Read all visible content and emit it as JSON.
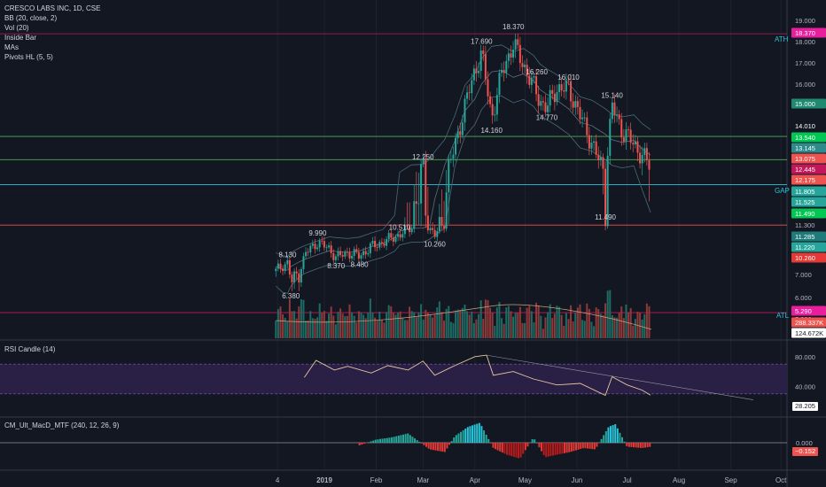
{
  "legend": {
    "title": "CRESCO LABS INC, 1D, CSE",
    "indicators": [
      "BB (20, close, 2)",
      "Vol (20)",
      "Inside Bar",
      "MAs",
      "Pivots HL (5, 5)"
    ]
  },
  "rsi_pane": {
    "title": "RSI Candle (14)",
    "value_tag": "28.205"
  },
  "macd_pane": {
    "title": "CM_Ult_MacD_MTF (240, 12, 26, 9)",
    "zero_tag": "0.000",
    "value_tag": "−0.152"
  },
  "side_labels": {
    "ath": "ATH",
    "gap": "GAP",
    "atl": "ATL"
  },
  "chart_data": {
    "type": "candlestick",
    "symbol": "CRESCO LABS INC",
    "interval": "1D",
    "exchange": "CSE",
    "price_axis_ticks": [
      "19.000",
      "18.000",
      "17.000",
      "16.000",
      "15.000",
      "14.000",
      "13.000",
      "12.000",
      "11.300",
      "7.000",
      "6.000",
      "5.000"
    ],
    "x_axis_ticks": [
      "4",
      "2019",
      "Feb",
      "Mar",
      "Apr",
      "May",
      "Jun",
      "Jul",
      "Aug",
      "Sep",
      "Oct"
    ],
    "price_tags": [
      {
        "text": "18.370",
        "price": 18.37,
        "color": "#e91e9c"
      },
      {
        "text": "15.000",
        "price": 15.0,
        "color": "#1f8a70"
      },
      {
        "text": "14.010",
        "price": 14.01,
        "color": "#131722"
      },
      {
        "text": "13.540",
        "price": 13.54,
        "color": "#00c853"
      },
      {
        "text": "13.145",
        "price": 13.145,
        "color": "#2e8b8b"
      },
      {
        "text": "13.075",
        "price": 13.075,
        "color": "#ef5350"
      },
      {
        "text": "12.445",
        "price": 12.445,
        "color": "#c2185b"
      },
      {
        "text": "12.175",
        "price": 12.175,
        "color": "#ef5350"
      },
      {
        "text": "11.805",
        "price": 11.805,
        "color": "#26a69a"
      },
      {
        "text": "11.525",
        "price": 11.525,
        "color": "#26a69a"
      },
      {
        "text": "11.490",
        "price": 11.49,
        "color": "#00c853"
      },
      {
        "text": "11.285",
        "price": 11.285,
        "color": "#1f7a7a"
      },
      {
        "text": "11.220",
        "price": 11.22,
        "color": "#26a69a"
      },
      {
        "text": "10.260",
        "price": 10.26,
        "color": "#e53935"
      },
      {
        "text": "5.290",
        "price": 5.29,
        "color": "#e91e9c"
      },
      {
        "text": "288.337K",
        "price": null,
        "color": "#ef5350"
      },
      {
        "text": "124.672K",
        "price": null,
        "color": "#ffffff"
      }
    ],
    "pivots": [
      {
        "label": "18.370",
        "date": "2019-04-24",
        "type": "high"
      },
      {
        "label": "17.690",
        "date": "2019-04-05",
        "type": "high"
      },
      {
        "label": "16.260",
        "date": "2019-05-08",
        "type": "high"
      },
      {
        "label": "16.010",
        "date": "2019-05-27",
        "type": "high"
      },
      {
        "label": "15.140",
        "date": "2019-06-22",
        "type": "high"
      },
      {
        "label": "14.770",
        "date": "2019-05-14",
        "type": "low"
      },
      {
        "label": "14.160",
        "date": "2019-04-11",
        "type": "low"
      },
      {
        "label": "12.250",
        "date": "2019-03-01",
        "type": "high"
      },
      {
        "label": "11.490",
        "date": "2019-06-18",
        "type": "low"
      },
      {
        "label": "10.510",
        "date": "2019-02-15",
        "type": "high"
      },
      {
        "label": "10.260",
        "date": "2019-03-08",
        "type": "low"
      },
      {
        "label": "9.990",
        "date": "2018-12-28",
        "type": "high"
      },
      {
        "label": "8.130",
        "date": "2018-12-10",
        "type": "high"
      },
      {
        "label": "8.370",
        "date": "2019-01-08",
        "type": "low"
      },
      {
        "label": "8.480",
        "date": "2019-01-22",
        "type": "low"
      },
      {
        "label": "6.380",
        "date": "2018-12-12",
        "type": "low"
      }
    ],
    "horizontal_levels": [
      {
        "name": "ATH",
        "price": 18.37,
        "color": "#c2185b"
      },
      {
        "name": "",
        "price": 13.54,
        "color": "#4caf50"
      },
      {
        "name": "",
        "price": 12.445,
        "color": "#4caf50"
      },
      {
        "name": "GAP",
        "price": 11.805,
        "color": "#26c6da"
      },
      {
        "name": "",
        "price": 11.285,
        "color": "#ef5350"
      },
      {
        "name": "ATL",
        "price": 5.29,
        "color": "#c2185b"
      }
    ],
    "close_path": [
      [
        "2018-12-03",
        7.3
      ],
      [
        "2018-12-07",
        7.8
      ],
      [
        "2018-12-10",
        8.0
      ],
      [
        "2018-12-12",
        6.6
      ],
      [
        "2018-12-17",
        7.2
      ],
      [
        "2018-12-21",
        8.9
      ],
      [
        "2018-12-28",
        9.8
      ],
      [
        "2019-01-04",
        9.2
      ],
      [
        "2019-01-08",
        8.5
      ],
      [
        "2019-01-15",
        8.9
      ],
      [
        "2019-01-22",
        8.6
      ],
      [
        "2019-01-29",
        9.4
      ],
      [
        "2019-02-05",
        9.8
      ],
      [
        "2019-02-12",
        10.3
      ],
      [
        "2019-02-15",
        10.4
      ],
      [
        "2019-02-22",
        11.2
      ],
      [
        "2019-03-01",
        12.1
      ],
      [
        "2019-03-05",
        11.0
      ],
      [
        "2019-03-08",
        10.4
      ],
      [
        "2019-03-14",
        11.6
      ],
      [
        "2019-03-20",
        13.0
      ],
      [
        "2019-03-26",
        15.0
      ],
      [
        "2019-04-01",
        16.6
      ],
      [
        "2019-04-05",
        17.5
      ],
      [
        "2019-04-11",
        14.4
      ],
      [
        "2019-04-17",
        16.5
      ],
      [
        "2019-04-24",
        17.9
      ],
      [
        "2019-04-30",
        16.9
      ],
      [
        "2019-05-06",
        15.9
      ],
      [
        "2019-05-10",
        15.2
      ],
      [
        "2019-05-14",
        14.9
      ],
      [
        "2019-05-20",
        15.8
      ],
      [
        "2019-05-27",
        15.8
      ],
      [
        "2019-06-03",
        14.5
      ],
      [
        "2019-06-10",
        13.2
      ],
      [
        "2019-06-18",
        11.7
      ],
      [
        "2019-06-22",
        15.0
      ],
      [
        "2019-06-28",
        13.8
      ],
      [
        "2019-07-05",
        13.2
      ],
      [
        "2019-07-10",
        12.6
      ],
      [
        "2019-07-15",
        12.175
      ]
    ],
    "volume_tags": [
      "288.337K",
      "124.672K"
    ],
    "rsi": {
      "y_ticks": [
        "80.000",
        "40.000"
      ],
      "bands": [
        70,
        30
      ],
      "last": 28.205,
      "path": [
        [
          "2018-12-20",
          52
        ],
        [
          "2018-12-27",
          75
        ],
        [
          "2019-01-07",
          62
        ],
        [
          "2019-01-15",
          67
        ],
        [
          "2019-01-29",
          58
        ],
        [
          "2019-02-08",
          68
        ],
        [
          "2019-02-20",
          62
        ],
        [
          "2019-03-01",
          74
        ],
        [
          "2019-03-08",
          55
        ],
        [
          "2019-03-20",
          68
        ],
        [
          "2019-04-01",
          80
        ],
        [
          "2019-04-08",
          82
        ],
        [
          "2019-04-12",
          55
        ],
        [
          "2019-04-24",
          60
        ],
        [
          "2019-05-06",
          50
        ],
        [
          "2019-05-20",
          42
        ],
        [
          "2019-06-03",
          44
        ],
        [
          "2019-06-18",
          28
        ],
        [
          "2019-06-22",
          53
        ],
        [
          "2019-07-01",
          42
        ],
        [
          "2019-07-10",
          35
        ],
        [
          "2019-07-15",
          28.205
        ]
      ]
    },
    "macd": {
      "y_ticks": [
        "0.000"
      ],
      "last": -0.152,
      "histogram": [
        [
          "2019-01-22",
          -0.1
        ],
        [
          "2019-02-01",
          0.12
        ],
        [
          "2019-02-10",
          0.2
        ],
        [
          "2019-02-20",
          0.35
        ],
        [
          "2019-03-05",
          -0.25
        ],
        [
          "2019-03-14",
          -0.35
        ],
        [
          "2019-03-20",
          0.25
        ],
        [
          "2019-03-28",
          0.6
        ],
        [
          "2019-04-04",
          0.75
        ],
        [
          "2019-04-12",
          -0.2
        ],
        [
          "2019-04-20",
          -0.45
        ],
        [
          "2019-04-28",
          -0.6
        ],
        [
          "2019-05-06",
          0.2
        ],
        [
          "2019-05-13",
          -0.55
        ],
        [
          "2019-05-20",
          -0.45
        ],
        [
          "2019-05-28",
          -0.35
        ],
        [
          "2019-06-05",
          -0.2
        ],
        [
          "2019-06-12",
          -0.25
        ],
        [
          "2019-06-20",
          0.6
        ],
        [
          "2019-06-24",
          0.7
        ],
        [
          "2019-07-01",
          -0.15
        ],
        [
          "2019-07-10",
          -0.2
        ],
        [
          "2019-07-15",
          -0.152
        ]
      ]
    }
  }
}
